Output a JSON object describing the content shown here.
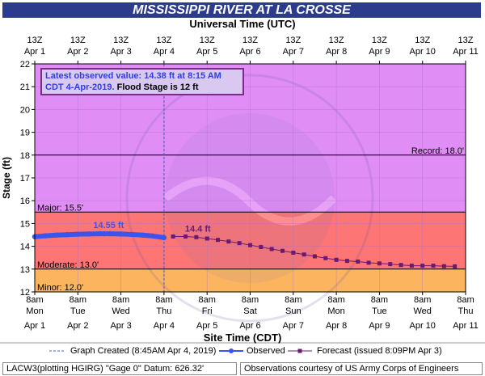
{
  "header": {
    "title": "MISSISSIPPI RIVER AT LA CROSSE",
    "top_axis_title": "Universal Time (UTC)",
    "bottom_axis_title": "Site Time (CDT)"
  },
  "obs_box": {
    "line1": "Latest observed value: 14.38 ft at 8:15 AM",
    "line2_blue": "CDT 4-Apr-2019.",
    "line2_black": "Flood Stage is 12 ft"
  },
  "legend": {
    "created": "Graph Created (8:45AM Apr 4, 2019)",
    "observed": "Observed",
    "forecast": "Forecast (issued 8:09PM Apr 3)"
  },
  "footer": {
    "left": "LACW3(plotting HGIRG) \"Gage 0\" Datum: 626.32'",
    "right": "Observations courtesy of US Army Corps of Engineers"
  },
  "colors": {
    "background_purple": "#e08ef5",
    "major_red": "#fd7574",
    "moderate_orange": "#fcb45e",
    "observed_blue": "#3a55ee",
    "forecast_purple": "#6a1a70",
    "title_bar": "#2d3b8f"
  },
  "chart_data": {
    "type": "line",
    "ylabel": "Stage (ft)",
    "ylim": [
      12,
      22
    ],
    "yticks": [
      12,
      13,
      14,
      15,
      16,
      17,
      18,
      19,
      20,
      21,
      22
    ],
    "grid": true,
    "legend_placement": "bottom",
    "top_ticks": [
      {
        "line1": "13Z",
        "line2": "Apr 1"
      },
      {
        "line1": "13Z",
        "line2": "Apr 2"
      },
      {
        "line1": "13Z",
        "line2": "Apr 3"
      },
      {
        "line1": "13Z",
        "line2": "Apr 4"
      },
      {
        "line1": "13Z",
        "line2": "Apr 5"
      },
      {
        "line1": "13Z",
        "line2": "Apr 6"
      },
      {
        "line1": "13Z",
        "line2": "Apr 7"
      },
      {
        "line1": "13Z",
        "line2": "Apr 8"
      },
      {
        "line1": "13Z",
        "line2": "Apr 9"
      },
      {
        "line1": "13Z",
        "line2": "Apr 10"
      },
      {
        "line1": "13Z",
        "line2": "Apr 11"
      }
    ],
    "bottom_ticks": [
      {
        "time": "8am",
        "day": "Mon",
        "date": "Apr 1"
      },
      {
        "time": "8am",
        "day": "Tue",
        "date": "Apr 2"
      },
      {
        "time": "8am",
        "day": "Wed",
        "date": "Apr 3"
      },
      {
        "time": "8am",
        "day": "Thu",
        "date": "Apr 4"
      },
      {
        "time": "8am",
        "day": "Fri",
        "date": "Apr 5"
      },
      {
        "time": "8am",
        "day": "Sat",
        "date": "Apr 6"
      },
      {
        "time": "8am",
        "day": "Sun",
        "date": "Apr 7"
      },
      {
        "time": "8am",
        "day": "Mon",
        "date": "Apr 8"
      },
      {
        "time": "8am",
        "day": "Tue",
        "date": "Apr 9"
      },
      {
        "time": "8am",
        "day": "Wed",
        "date": "Apr 10"
      },
      {
        "time": "8am",
        "day": "Thu",
        "date": "Apr 11"
      }
    ],
    "x_unit": "days since Apr 1 8am CDT",
    "thresholds": [
      {
        "label": "Record: 18.0'",
        "value": 18.0
      },
      {
        "label": "Major: 15.5'",
        "value": 15.5
      },
      {
        "label": "Moderate: 13.0'",
        "value": 13.0
      },
      {
        "label": "Minor: 12.0'",
        "value": 12.0
      }
    ],
    "graph_created_x": 3.0,
    "annotations": [
      {
        "text": "14.55 ft",
        "x": 1.62,
        "y": 14.55,
        "series": "observed"
      },
      {
        "text": "14.4 ft",
        "x": 3.75,
        "y": 14.4,
        "series": "forecast"
      }
    ],
    "series": [
      {
        "name": "Observed",
        "x": [
          0,
          0.25,
          0.5,
          0.75,
          1.0,
          1.25,
          1.5,
          1.62,
          1.75,
          2.0,
          2.25,
          2.5,
          2.75,
          3.0
        ],
        "y": [
          14.42,
          14.46,
          14.49,
          14.51,
          14.53,
          14.54,
          14.55,
          14.55,
          14.55,
          14.54,
          14.52,
          14.49,
          14.45,
          14.38
        ]
      },
      {
        "name": "Forecast",
        "x": [
          3.21,
          3.5,
          3.75,
          4.0,
          4.25,
          4.5,
          4.75,
          5.0,
          5.25,
          5.5,
          5.75,
          6.0,
          6.25,
          6.5,
          6.75,
          7.0,
          7.25,
          7.5,
          7.75,
          8.0,
          8.25,
          8.5,
          8.75,
          9.0,
          9.25,
          9.5,
          9.75
        ],
        "y": [
          14.43,
          14.43,
          14.4,
          14.34,
          14.28,
          14.21,
          14.14,
          14.05,
          13.97,
          13.88,
          13.8,
          13.72,
          13.64,
          13.56,
          13.48,
          13.41,
          13.36,
          13.33,
          13.28,
          13.25,
          13.22,
          13.18,
          13.15,
          13.15,
          13.15,
          13.13,
          13.12
        ]
      }
    ]
  }
}
